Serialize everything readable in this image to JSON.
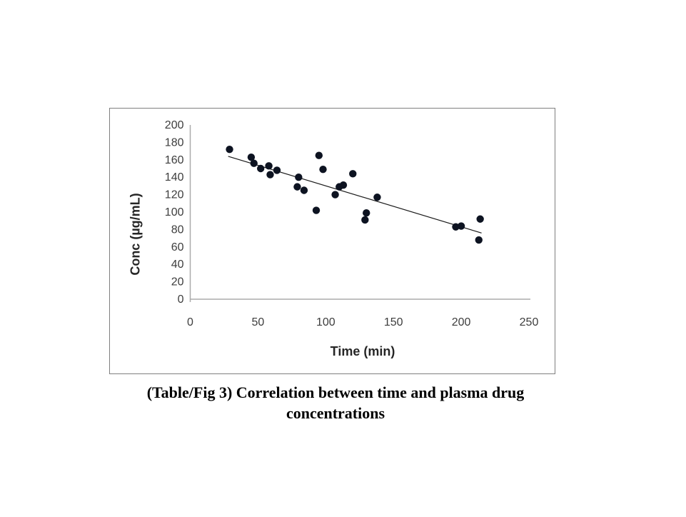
{
  "figure": {
    "caption_line1": "(Table/Fig 3) Correlation between time and plasma drug",
    "caption_line2": "concentrations"
  },
  "chart_data": {
    "type": "scatter",
    "title": "",
    "xlabel": "Time (min)",
    "ylabel": "Conc (µg/mL)",
    "xlim": [
      0,
      250
    ],
    "ylim": [
      0,
      200
    ],
    "xticks": [
      0,
      50,
      100,
      150,
      200,
      250
    ],
    "yticks": [
      0,
      20,
      40,
      60,
      80,
      100,
      120,
      140,
      160,
      180,
      200
    ],
    "grid": false,
    "legend": "none",
    "points": [
      [
        29,
        172
      ],
      [
        45,
        163
      ],
      [
        47,
        156
      ],
      [
        52,
        150
      ],
      [
        58,
        153
      ],
      [
        59,
        143
      ],
      [
        64,
        148
      ],
      [
        80,
        140
      ],
      [
        79,
        129
      ],
      [
        84,
        125
      ],
      [
        93,
        102
      ],
      [
        95,
        165
      ],
      [
        98,
        149
      ],
      [
        107,
        120
      ],
      [
        110,
        129
      ],
      [
        113,
        131
      ],
      [
        120,
        144
      ],
      [
        129,
        91
      ],
      [
        130,
        99
      ],
      [
        138,
        117
      ],
      [
        196,
        83
      ],
      [
        200,
        84
      ],
      [
        213,
        68
      ],
      [
        214,
        92
      ]
    ],
    "trendline": {
      "x1": 28,
      "y1": 164,
      "x2": 215,
      "y2": 76
    },
    "point_color": "#0d1321",
    "trendline_color": "#1a1a1a",
    "axis_color": "#ababab",
    "tick_label_color": "#3d3d3d"
  }
}
